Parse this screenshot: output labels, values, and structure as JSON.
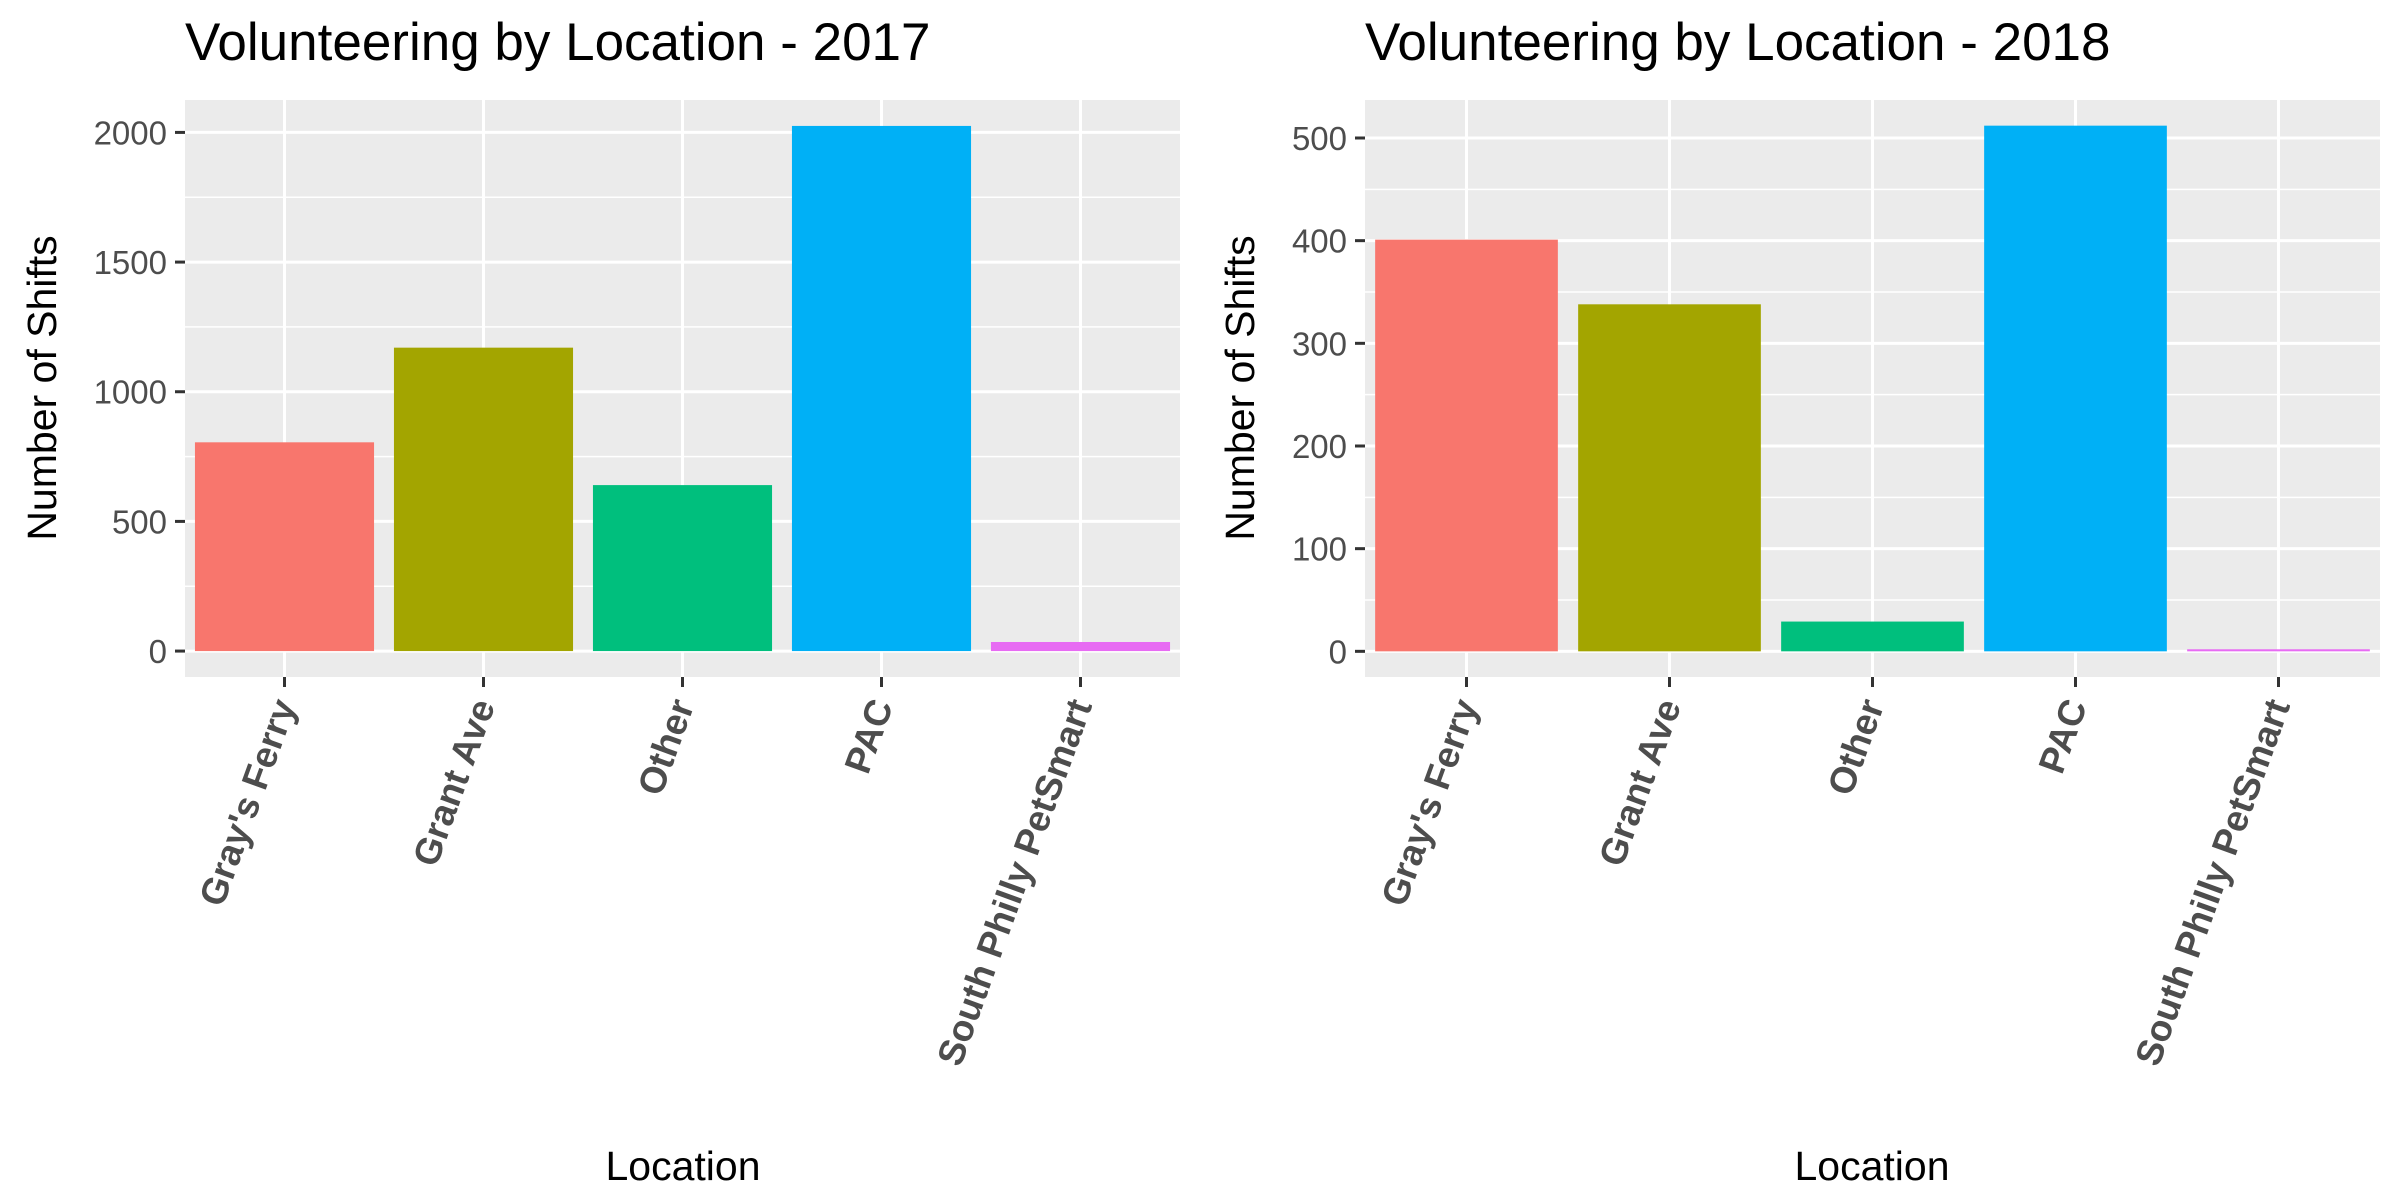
{
  "chart_data": [
    {
      "type": "bar",
      "title": "Volunteering by Location - 2017",
      "xlabel": "Location",
      "ylabel": "Number of Shifts",
      "categories": [
        "Gray's Ferry",
        "Grant Ave",
        "Other",
        "PAC",
        "South Philly PetSmart"
      ],
      "values": [
        805,
        1170,
        640,
        2025,
        35
      ],
      "colors": [
        "#F8766D",
        "#A3A500",
        "#00BF7D",
        "#00B0F6",
        "#E76BF3"
      ],
      "yticks": [
        0,
        500,
        1000,
        1500,
        2000
      ],
      "ylim": [
        -100,
        2125
      ],
      "grid": true,
      "legend": "none"
    },
    {
      "type": "bar",
      "title": "Volunteering by Location - 2018",
      "xlabel": "Location",
      "ylabel": "Number of Shifts",
      "categories": [
        "Gray's Ferry",
        "Grant Ave",
        "Other",
        "PAC",
        "South Philly PetSmart"
      ],
      "values": [
        401,
        338,
        29,
        512,
        2
      ],
      "colors": [
        "#F8766D",
        "#A3A500",
        "#00BF7D",
        "#00B0F6",
        "#E76BF3"
      ],
      "yticks": [
        0,
        100,
        200,
        300,
        400,
        500
      ],
      "ylim": [
        -25,
        537
      ],
      "grid": true,
      "legend": "none"
    }
  ]
}
